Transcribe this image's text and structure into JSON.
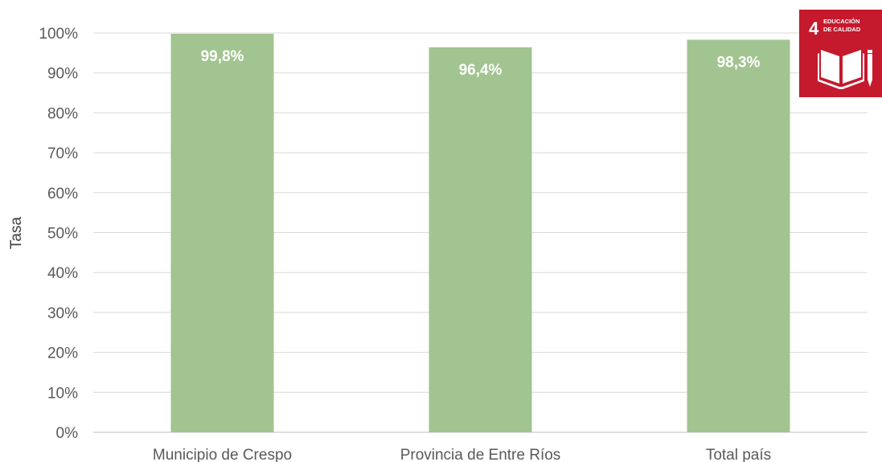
{
  "chart_data": {
    "type": "bar",
    "title": "",
    "xlabel": "",
    "ylabel": "Tasa",
    "categories": [
      "Municipio de Crespo",
      "Provincia de Entre Ríos",
      "Total país"
    ],
    "values": [
      99.8,
      96.4,
      98.3
    ],
    "data_labels": [
      "99,8%",
      "96,4%",
      "98,3%"
    ],
    "ylim": [
      0,
      100
    ],
    "y_ticks": [
      0,
      10,
      20,
      30,
      40,
      50,
      60,
      70,
      80,
      90,
      100
    ],
    "y_tick_labels": [
      "0%",
      "10%",
      "20%",
      "30%",
      "40%",
      "50%",
      "60%",
      "70%",
      "80%",
      "90%",
      "100%"
    ],
    "grid": true,
    "legend": "none",
    "colors": {
      "bar": "#a2c490",
      "grid": "#d9d9d9",
      "badge": "#c5192d"
    }
  },
  "badge": {
    "number": "4",
    "line1": "EDUCACIÓN",
    "line2": "DE CALIDAD",
    "icon": "open-book-pencil-icon"
  }
}
